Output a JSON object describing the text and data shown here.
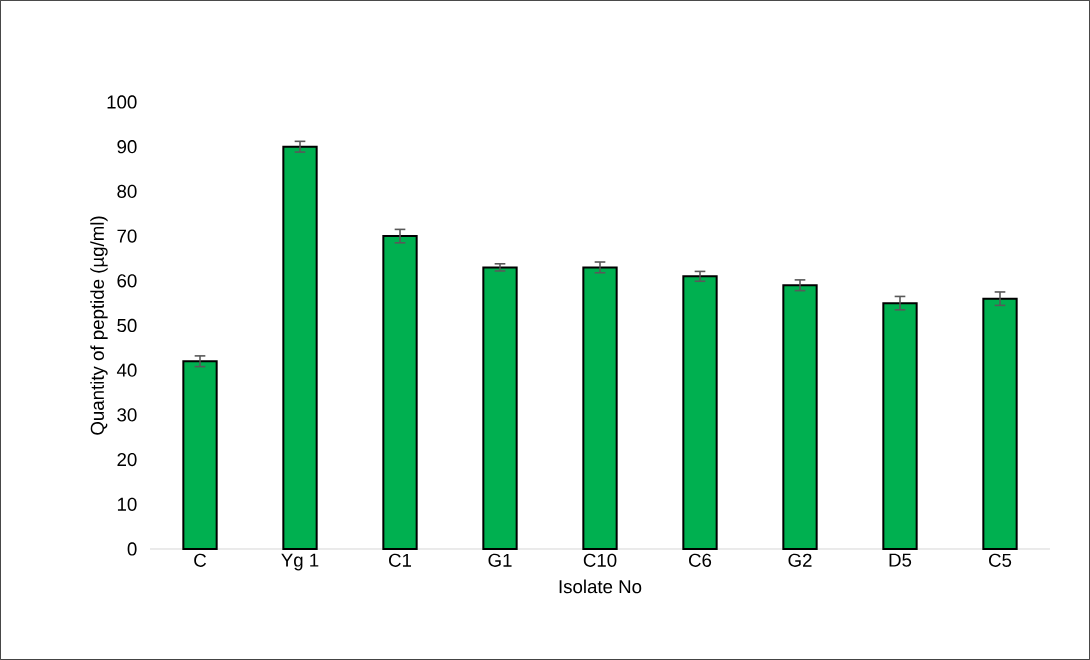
{
  "chart_data": {
    "type": "bar",
    "xlabel": "Isolate No",
    "ylabel": "Quantity of peptide (µg/ml)",
    "categories": [
      "C",
      "Yg 1",
      "C1",
      "G1",
      "C10",
      "C6",
      "G2",
      "D5",
      "C5"
    ],
    "values": [
      42,
      90,
      70,
      63,
      63,
      61,
      59,
      55,
      56
    ],
    "errors": [
      1.2,
      1.2,
      1.5,
      0.8,
      1.2,
      1.1,
      1.2,
      1.5,
      1.5
    ],
    "color": "#00b050",
    "ylim": [
      0,
      100
    ],
    "yticks": [
      0,
      10,
      20,
      30,
      40,
      50,
      60,
      70,
      80,
      90,
      100
    ],
    "grid": false
  }
}
